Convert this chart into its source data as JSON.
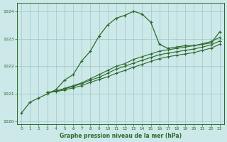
{
  "x": [
    0,
    1,
    2,
    3,
    4,
    5,
    6,
    7,
    8,
    9,
    10,
    11,
    12,
    13,
    14,
    15,
    16,
    17,
    18,
    19,
    20,
    21,
    22,
    23
  ],
  "line1": [
    1020.3,
    1020.7,
    1020.85,
    1021.0,
    1021.15,
    1021.5,
    1021.7,
    1022.2,
    1022.55,
    1023.1,
    1023.5,
    1023.75,
    1023.85,
    1024.0,
    1023.9,
    1023.6,
    1022.8,
    1022.65,
    1022.7,
    1022.75,
    1022.75,
    1022.8,
    1022.85,
    1023.25
  ],
  "line2": [
    null,
    null,
    null,
    1021.05,
    1021.1,
    1021.2,
    1021.3,
    1021.4,
    1021.55,
    1021.7,
    1021.85,
    1022.0,
    1022.1,
    1022.25,
    1022.35,
    1022.45,
    1022.55,
    1022.6,
    1022.65,
    1022.7,
    1022.75,
    1022.82,
    1022.9,
    1023.05
  ],
  "line3": [
    null,
    null,
    null,
    1021.05,
    1021.1,
    1021.18,
    1021.27,
    1021.37,
    1021.5,
    1021.6,
    1021.75,
    1021.9,
    1022.0,
    1022.12,
    1022.22,
    1022.32,
    1022.42,
    1022.48,
    1022.53,
    1022.58,
    1022.63,
    1022.7,
    1022.78,
    1022.92
  ],
  "line4": [
    null,
    null,
    null,
    1021.05,
    1021.08,
    1021.14,
    1021.22,
    1021.3,
    1021.42,
    1021.52,
    1021.62,
    1021.75,
    1021.85,
    1021.97,
    1022.07,
    1022.18,
    1022.28,
    1022.35,
    1022.4,
    1022.45,
    1022.5,
    1022.58,
    1022.66,
    1022.8
  ],
  "bg_color": "#cce8e8",
  "line_color": "#2d6a2d",
  "grid_color": "#9fc8c8",
  "xlabel": "Graphe pression niveau de la mer (hPa)",
  "ylim": [
    1019.9,
    1024.3
  ],
  "xlim": [
    -0.5,
    23.5
  ],
  "yticks": [
    1020,
    1021,
    1022,
    1023,
    1024
  ],
  "xticks": [
    0,
    1,
    2,
    3,
    4,
    5,
    6,
    7,
    8,
    9,
    10,
    11,
    12,
    13,
    14,
    15,
    16,
    17,
    18,
    19,
    20,
    21,
    22,
    23
  ]
}
